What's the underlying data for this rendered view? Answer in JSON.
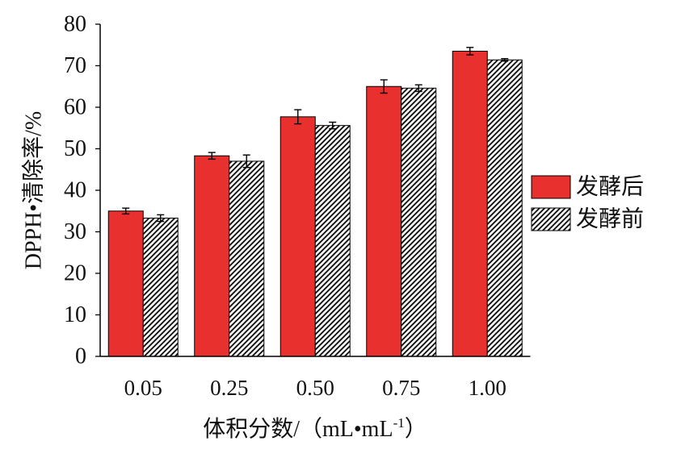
{
  "chart_data": {
    "type": "bar",
    "categories": [
      "0.05",
      "0.25",
      "0.50",
      "0.75",
      "1.00"
    ],
    "series": [
      {
        "name": "发酵后",
        "values": [
          35.0,
          48.3,
          57.7,
          65.0,
          73.5
        ],
        "errors": [
          0.7,
          0.8,
          1.7,
          1.6,
          0.9
        ],
        "color": "#e8302e",
        "fill": "solid"
      },
      {
        "name": "发酵前",
        "values": [
          33.3,
          47.0,
          55.6,
          64.6,
          71.4
        ],
        "errors": [
          0.8,
          1.5,
          0.8,
          0.8,
          0.3
        ],
        "color": "#000000",
        "fill": "hatch"
      }
    ],
    "ylabel": "DPPH•清除率/%",
    "xlabel": {
      "main": "体积分数/（mL•mL",
      "sup": "-1",
      "end": "）"
    },
    "ylim": [
      0,
      80
    ],
    "yticks": [
      "0",
      "10",
      "20",
      "30",
      "40",
      "50",
      "60",
      "70",
      "80"
    ],
    "grid": false,
    "legend": "right",
    "error_bars": true
  }
}
